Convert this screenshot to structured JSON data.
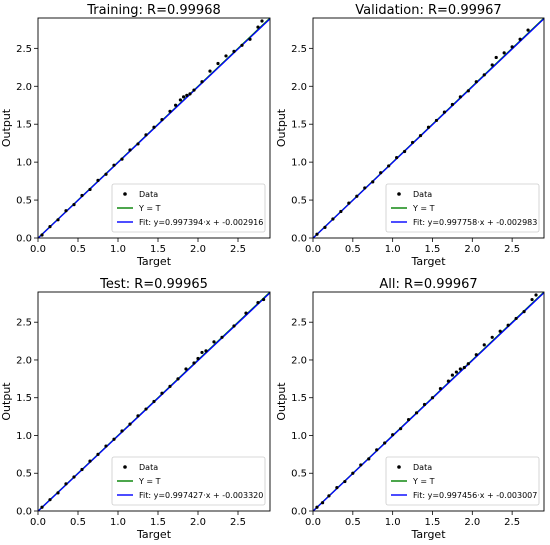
{
  "chart_data": [
    {
      "type": "scatter",
      "title": "Training: R=0.99968",
      "xlabel": "Target",
      "ylabel": "Output",
      "xlim": [
        0,
        2.9
      ],
      "ylim": [
        0,
        2.9
      ],
      "xticks": [
        "0.0",
        "0.5",
        "1.0",
        "1.5",
        "2.0",
        "2.5"
      ],
      "yticks": [
        "0.0",
        "0.5",
        "1.0",
        "1.5",
        "2.0",
        "2.5"
      ],
      "grid": false,
      "legend_position": "bottom-right",
      "fit": {
        "slope": 0.997394,
        "intercept": -0.002916
      },
      "series": [
        {
          "name": "Data",
          "color": "#000000",
          "points": [
            [
              0.05,
              0.04
            ],
            [
              0.15,
              0.15
            ],
            [
              0.25,
              0.24
            ],
            [
              0.35,
              0.36
            ],
            [
              0.45,
              0.44
            ],
            [
              0.55,
              0.56
            ],
            [
              0.65,
              0.64
            ],
            [
              0.75,
              0.76
            ],
            [
              0.85,
              0.84
            ],
            [
              0.95,
              0.96
            ],
            [
              1.05,
              1.04
            ],
            [
              1.15,
              1.16
            ],
            [
              1.25,
              1.24
            ],
            [
              1.35,
              1.36
            ],
            [
              1.45,
              1.46
            ],
            [
              1.55,
              1.56
            ],
            [
              1.65,
              1.67
            ],
            [
              1.72,
              1.75
            ],
            [
              1.78,
              1.82
            ],
            [
              1.82,
              1.86
            ],
            [
              1.86,
              1.88
            ],
            [
              1.9,
              1.9
            ],
            [
              1.95,
              1.95
            ],
            [
              2.05,
              2.06
            ],
            [
              2.15,
              2.2
            ],
            [
              2.25,
              2.3
            ],
            [
              2.35,
              2.4
            ],
            [
              2.45,
              2.46
            ],
            [
              2.55,
              2.54
            ],
            [
              2.65,
              2.62
            ],
            [
              2.75,
              2.78
            ],
            [
              2.8,
              2.86
            ]
          ]
        },
        {
          "name": "Y = T",
          "color": "#008000"
        },
        {
          "name": "Fit: y=0.997394·x + -0.002916",
          "color": "#0000ff"
        }
      ]
    },
    {
      "type": "scatter",
      "title": "Validation: R=0.99967",
      "xlabel": "Target",
      "ylabel": "Output",
      "xlim": [
        0,
        2.9
      ],
      "ylim": [
        0,
        2.9
      ],
      "xticks": [
        "0.0",
        "0.5",
        "1.0",
        "1.5",
        "2.0",
        "2.5"
      ],
      "yticks": [
        "0.0",
        "0.5",
        "1.0",
        "1.5",
        "2.0",
        "2.5"
      ],
      "grid": false,
      "legend_position": "bottom-right",
      "fit": {
        "slope": 0.997758,
        "intercept": -0.002983
      },
      "series": [
        {
          "name": "Data",
          "color": "#000000",
          "points": [
            [
              0.05,
              0.05
            ],
            [
              0.15,
              0.14
            ],
            [
              0.25,
              0.25
            ],
            [
              0.35,
              0.35
            ],
            [
              0.45,
              0.46
            ],
            [
              0.55,
              0.55
            ],
            [
              0.65,
              0.66
            ],
            [
              0.75,
              0.74
            ],
            [
              0.85,
              0.86
            ],
            [
              0.95,
              0.95
            ],
            [
              1.05,
              1.06
            ],
            [
              1.15,
              1.14
            ],
            [
              1.25,
              1.26
            ],
            [
              1.35,
              1.35
            ],
            [
              1.45,
              1.46
            ],
            [
              1.55,
              1.55
            ],
            [
              1.65,
              1.66
            ],
            [
              1.75,
              1.76
            ],
            [
              1.85,
              1.86
            ],
            [
              1.95,
              1.94
            ],
            [
              2.05,
              2.06
            ],
            [
              2.15,
              2.15
            ],
            [
              2.25,
              2.28
            ],
            [
              2.3,
              2.38
            ],
            [
              2.4,
              2.44
            ],
            [
              2.5,
              2.52
            ],
            [
              2.6,
              2.62
            ],
            [
              2.7,
              2.74
            ]
          ]
        },
        {
          "name": "Y = T",
          "color": "#008000"
        },
        {
          "name": "Fit: y=0.997758·x + -0.002983",
          "color": "#0000ff"
        }
      ]
    },
    {
      "type": "scatter",
      "title": "Test: R=0.99965",
      "xlabel": "Target",
      "ylabel": "Output",
      "xlim": [
        0,
        2.9
      ],
      "ylim": [
        0,
        2.9
      ],
      "xticks": [
        "0.0",
        "0.5",
        "1.0",
        "1.5",
        "2.0",
        "2.5"
      ],
      "yticks": [
        "0.0",
        "0.5",
        "1.0",
        "1.5",
        "2.0",
        "2.5"
      ],
      "grid": false,
      "legend_position": "bottom-right",
      "fit": {
        "slope": 0.997427,
        "intercept": -0.00332
      },
      "series": [
        {
          "name": "Data",
          "color": "#000000",
          "points": [
            [
              0.05,
              0.05
            ],
            [
              0.15,
              0.15
            ],
            [
              0.25,
              0.24
            ],
            [
              0.35,
              0.36
            ],
            [
              0.45,
              0.45
            ],
            [
              0.55,
              0.55
            ],
            [
              0.65,
              0.66
            ],
            [
              0.75,
              0.75
            ],
            [
              0.85,
              0.86
            ],
            [
              0.95,
              0.95
            ],
            [
              1.05,
              1.06
            ],
            [
              1.15,
              1.15
            ],
            [
              1.25,
              1.26
            ],
            [
              1.35,
              1.35
            ],
            [
              1.45,
              1.45
            ],
            [
              1.55,
              1.56
            ],
            [
              1.65,
              1.65
            ],
            [
              1.75,
              1.75
            ],
            [
              1.85,
              1.88
            ],
            [
              1.95,
              1.96
            ],
            [
              2.0,
              2.02
            ],
            [
              2.05,
              2.1
            ],
            [
              2.1,
              2.12
            ],
            [
              2.2,
              2.24
            ],
            [
              2.3,
              2.3
            ],
            [
              2.45,
              2.45
            ],
            [
              2.6,
              2.62
            ],
            [
              2.75,
              2.76
            ],
            [
              2.82,
              2.8
            ]
          ]
        },
        {
          "name": "Y = T",
          "color": "#008000"
        },
        {
          "name": "Fit: y=0.997427·x + -0.003320",
          "color": "#0000ff"
        }
      ]
    },
    {
      "type": "scatter",
      "title": "All: R=0.99967",
      "xlabel": "Target",
      "ylabel": "Output",
      "xlim": [
        0,
        2.9
      ],
      "ylim": [
        0,
        2.9
      ],
      "xticks": [
        "0.0",
        "0.5",
        "1.0",
        "1.5",
        "2.0",
        "2.5"
      ],
      "yticks": [
        "0.0",
        "0.5",
        "1.0",
        "1.5",
        "2.0",
        "2.5"
      ],
      "grid": false,
      "legend_position": "bottom-right",
      "fit": {
        "slope": 0.997456,
        "intercept": -0.003007
      },
      "series": [
        {
          "name": "Data",
          "color": "#000000",
          "points": [
            [
              0.05,
              0.05
            ],
            [
              0.12,
              0.11
            ],
            [
              0.2,
              0.2
            ],
            [
              0.3,
              0.31
            ],
            [
              0.4,
              0.39
            ],
            [
              0.5,
              0.5
            ],
            [
              0.6,
              0.61
            ],
            [
              0.7,
              0.69
            ],
            [
              0.8,
              0.81
            ],
            [
              0.9,
              0.9
            ],
            [
              1.0,
              1.01
            ],
            [
              1.1,
              1.09
            ],
            [
              1.2,
              1.21
            ],
            [
              1.3,
              1.3
            ],
            [
              1.4,
              1.41
            ],
            [
              1.5,
              1.5
            ],
            [
              1.6,
              1.62
            ],
            [
              1.7,
              1.72
            ],
            [
              1.75,
              1.8
            ],
            [
              1.8,
              1.84
            ],
            [
              1.85,
              1.88
            ],
            [
              1.9,
              1.9
            ],
            [
              1.95,
              1.95
            ],
            [
              2.05,
              2.07
            ],
            [
              2.15,
              2.2
            ],
            [
              2.25,
              2.3
            ],
            [
              2.35,
              2.38
            ],
            [
              2.45,
              2.46
            ],
            [
              2.55,
              2.55
            ],
            [
              2.65,
              2.64
            ],
            [
              2.75,
              2.8
            ],
            [
              2.8,
              2.86
            ]
          ]
        },
        {
          "name": "Y = T",
          "color": "#008000"
        },
        {
          "name": "Fit: y=0.997456·x + -0.003007",
          "color": "#0000ff"
        }
      ]
    }
  ]
}
